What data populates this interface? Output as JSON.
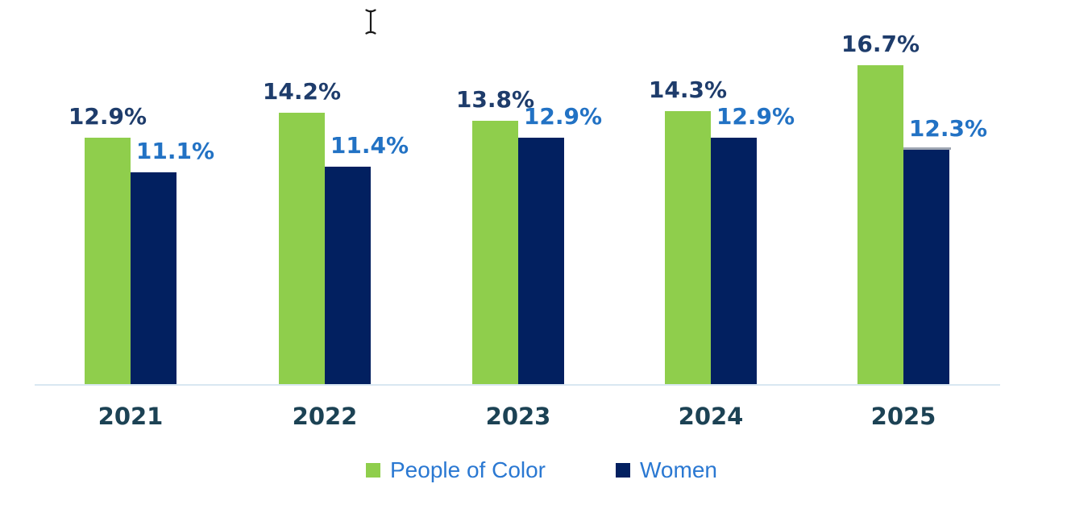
{
  "chart_data": {
    "type": "bar",
    "categories": [
      "2021",
      "2022",
      "2023",
      "2024",
      "2025"
    ],
    "series": [
      {
        "name": "People of Color",
        "values": [
          12.9,
          14.2,
          13.8,
          14.3,
          16.7
        ],
        "labels": [
          "12.9%",
          "14.2%",
          "13.8%",
          "14.3%",
          "16.7%"
        ],
        "bar_color": "#8FCE4C",
        "label_color": "#1E3C6B"
      },
      {
        "name": "Women",
        "values": [
          11.1,
          11.4,
          12.9,
          12.9,
          12.3
        ],
        "labels": [
          "11.1%",
          "11.4%",
          "12.9%",
          "12.9%",
          "12.3%"
        ],
        "bar_color": "#022060",
        "label_color": "#2272C4"
      }
    ],
    "value_suffix": "%",
    "ylim": [
      0,
      17.5
    ],
    "grid": false,
    "y_axis_visible": false,
    "data_labels_visible": true,
    "legend_position": "bottom",
    "artifacts": [
      {
        "type": "gray-top-edge",
        "series": "Women",
        "category": "2025",
        "color": "#9FA6B2"
      }
    ]
  },
  "axis": {
    "baseline_color": "#D9E7F1",
    "category_label_color": "#1C4254"
  },
  "legend": {
    "text_color": "#2A78D2",
    "items": [
      {
        "label": "People of Color",
        "swatch_color": "#8FCE4C"
      },
      {
        "label": "Women",
        "swatch_color": "#022060"
      }
    ]
  },
  "cursor": {
    "type": "text-ibeam",
    "color": "#1A1A1A"
  }
}
